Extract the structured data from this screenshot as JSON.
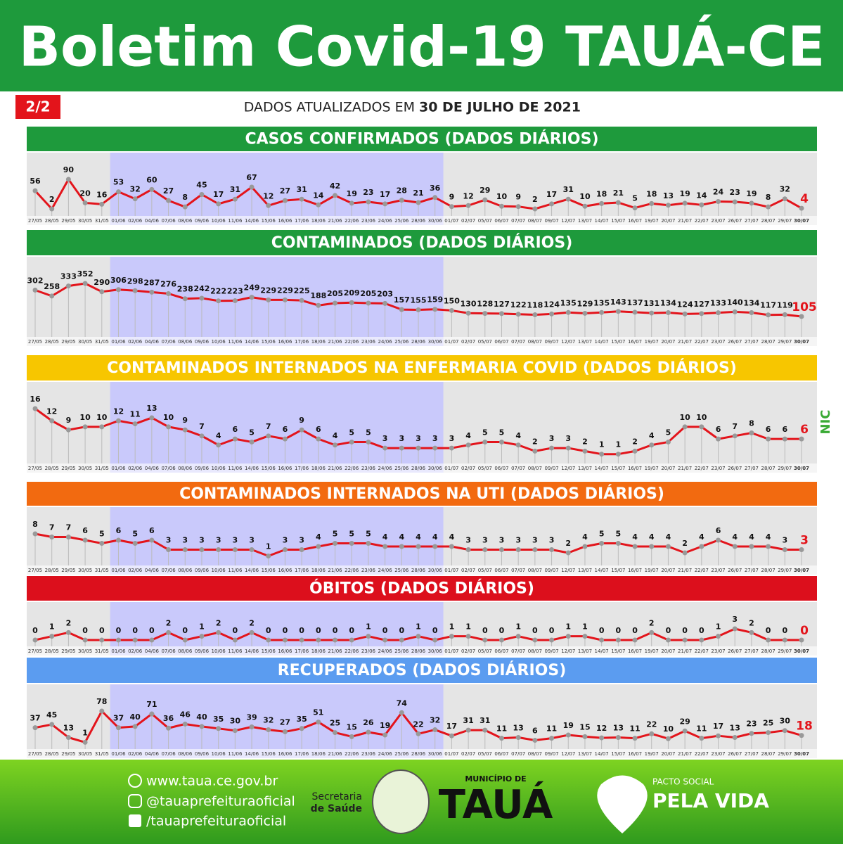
{
  "header": {
    "title": "Boletim Covid-19 TAUÁ-CE",
    "page": "2/2",
    "updated_prefix": "DADOS ATUALIZADOS EM",
    "updated_date": "30 DE JULHO DE 2021"
  },
  "chart_data": [
    {
      "type": "line",
      "title": "CASOS CONFIRMADOS  (DADOS DIÁRIOS)",
      "header_color": "#1e9a3c",
      "color": "#e3141b",
      "categories": [
        "27/05",
        "28/05",
        "29/05",
        "30/05",
        "31/05",
        "01/06",
        "02/06",
        "04/06",
        "07/06",
        "08/06",
        "09/06",
        "10/06",
        "11/06",
        "14/06",
        "15/06",
        "16/06",
        "17/06",
        "18/06",
        "21/06",
        "22/06",
        "23/06",
        "24/06",
        "25/06",
        "28/06",
        "30/06",
        "01/07",
        "02/07",
        "05/07",
        "06/07",
        "07/07",
        "08/07",
        "09/07",
        "12/07",
        "13/07",
        "14/07",
        "15/07",
        "16/07",
        "19/07",
        "20/07",
        "21/07",
        "22/07",
        "23/07",
        "26/07",
        "27/07",
        "28/07",
        "29/07",
        "30/07"
      ],
      "values": [
        56,
        2,
        90,
        20,
        16,
        53,
        32,
        60,
        27,
        8,
        45,
        17,
        31,
        67,
        12,
        27,
        31,
        14,
        42,
        19,
        23,
        17,
        28,
        21,
        36,
        9,
        12,
        29,
        10,
        9,
        2,
        17,
        31,
        10,
        18,
        21,
        5,
        18,
        13,
        19,
        14,
        24,
        23,
        19,
        8,
        32,
        4
      ]
    },
    {
      "type": "line",
      "title": "CONTAMINADOS  (DADOS DIÁRIOS)",
      "header_color": "#1e9a3c",
      "color": "#e3141b",
      "categories": [
        "27/05",
        "28/05",
        "29/05",
        "30/05",
        "31/05",
        "01/06",
        "02/06",
        "04/06",
        "07/06",
        "08/06",
        "09/06",
        "10/06",
        "11/06",
        "14/06",
        "15/06",
        "16/06",
        "17/06",
        "18/06",
        "21/06",
        "22/06",
        "23/06",
        "24/06",
        "25/06",
        "28/06",
        "30/06",
        "01/07",
        "02/07",
        "05/07",
        "06/07",
        "07/07",
        "08/07",
        "09/07",
        "12/07",
        "13/07",
        "14/07",
        "15/07",
        "16/07",
        "19/07",
        "20/07",
        "21/07",
        "22/07",
        "23/07",
        "26/07",
        "27/07",
        "28/07",
        "29/07",
        "30/07"
      ],
      "values": [
        302,
        258,
        333,
        352,
        290,
        306,
        298,
        287,
        276,
        238,
        242,
        222,
        223,
        249,
        229,
        229,
        225,
        188,
        205,
        209,
        205,
        203,
        157,
        155,
        159,
        150,
        130,
        128,
        127,
        122,
        118,
        124,
        135,
        129,
        135,
        143,
        137,
        131,
        134,
        124,
        127,
        133,
        140,
        134,
        117,
        119,
        105
      ]
    },
    {
      "type": "line",
      "title": "CONTAMINADOS INTERNADOS NA ENFERMARIA COVID  (DADOS DIÁRIOS)",
      "header_color": "#f7c600",
      "color": "#e3141b",
      "categories": [
        "27/05",
        "28/05",
        "29/05",
        "30/05",
        "31/05",
        "01/06",
        "02/06",
        "04/06",
        "07/06",
        "08/06",
        "09/06",
        "10/06",
        "11/06",
        "14/06",
        "15/06",
        "16/06",
        "17/06",
        "18/06",
        "21/06",
        "22/06",
        "23/06",
        "24/06",
        "25/06",
        "28/06",
        "30/06",
        "01/07",
        "02/07",
        "05/07",
        "06/07",
        "07/07",
        "08/07",
        "09/07",
        "12/07",
        "13/07",
        "14/07",
        "15/07",
        "16/07",
        "19/07",
        "20/07",
        "21/07",
        "22/07",
        "23/07",
        "26/07",
        "27/07",
        "28/07",
        "29/07",
        "30/07"
      ],
      "values": [
        16,
        12,
        9,
        10,
        10,
        12,
        11,
        13,
        10,
        9,
        7,
        4,
        6,
        5,
        7,
        6,
        9,
        6,
        4,
        5,
        5,
        3,
        3,
        3,
        3,
        3,
        4,
        5,
        5,
        4,
        2,
        3,
        3,
        2,
        1,
        1,
        2,
        4,
        5,
        10,
        10,
        6,
        7,
        8,
        6,
        6,
        6
      ]
    },
    {
      "type": "line",
      "title": "CONTAMINADOS INTERNADOS NA UTI  (DADOS DIÁRIOS)",
      "header_color": "#f26a10",
      "color": "#e3141b",
      "categories": [
        "27/05",
        "28/05",
        "29/05",
        "30/05",
        "31/05",
        "01/06",
        "02/06",
        "04/06",
        "07/06",
        "08/06",
        "09/06",
        "10/06",
        "11/06",
        "14/06",
        "15/06",
        "16/06",
        "17/06",
        "18/06",
        "21/06",
        "22/06",
        "23/06",
        "24/06",
        "25/06",
        "28/06",
        "30/06",
        "01/07",
        "02/07",
        "05/07",
        "06/07",
        "07/07",
        "08/07",
        "09/07",
        "12/07",
        "13/07",
        "14/07",
        "15/07",
        "16/07",
        "19/07",
        "20/07",
        "21/07",
        "22/07",
        "23/07",
        "26/07",
        "27/07",
        "28/07",
        "29/07",
        "30/07"
      ],
      "values": [
        8,
        7,
        7,
        6,
        5,
        6,
        5,
        6,
        3,
        3,
        3,
        3,
        3,
        3,
        1,
        3,
        3,
        4,
        5,
        5,
        5,
        4,
        4,
        4,
        4,
        4,
        3,
        3,
        3,
        3,
        3,
        3,
        2,
        4,
        5,
        5,
        4,
        4,
        4,
        2,
        4,
        6,
        4,
        4,
        4,
        3,
        3
      ]
    },
    {
      "type": "line",
      "title": "ÓBITOS  (DADOS DIÁRIOS)",
      "header_color": "#dc0f1c",
      "color": "#e3141b",
      "categories": [
        "27/05",
        "28/05",
        "29/05",
        "30/05",
        "31/05",
        "01/06",
        "02/06",
        "04/06",
        "07/06",
        "08/06",
        "09/06",
        "10/06",
        "11/06",
        "14/06",
        "15/06",
        "16/06",
        "17/06",
        "18/06",
        "21/06",
        "22/06",
        "23/06",
        "24/06",
        "25/06",
        "28/06",
        "30/06",
        "01/07",
        "02/07",
        "05/07",
        "06/07",
        "07/07",
        "08/07",
        "09/07",
        "12/07",
        "13/07",
        "14/07",
        "15/07",
        "16/07",
        "19/07",
        "20/07",
        "21/07",
        "22/07",
        "23/07",
        "26/07",
        "27/07",
        "28/07",
        "29/07",
        "30/07"
      ],
      "values": [
        0,
        1,
        2,
        0,
        0,
        0,
        0,
        0,
        2,
        0,
        1,
        2,
        0,
        2,
        0,
        0,
        0,
        0,
        0,
        0,
        1,
        0,
        0,
        1,
        0,
        1,
        1,
        0,
        0,
        1,
        0,
        0,
        1,
        1,
        0,
        0,
        0,
        2,
        0,
        0,
        0,
        1,
        3,
        2,
        0,
        0,
        0
      ]
    },
    {
      "type": "line",
      "title": "RECUPERADOS (DADOS DIÁRIOS)",
      "header_color": "#5b9cf0",
      "color": "#e3141b",
      "categories": [
        "27/05",
        "28/05",
        "29/05",
        "30/05",
        "31/05",
        "01/06",
        "02/06",
        "04/06",
        "07/06",
        "08/06",
        "09/06",
        "10/06",
        "11/06",
        "14/06",
        "15/06",
        "16/06",
        "17/06",
        "18/06",
        "21/06",
        "22/06",
        "23/06",
        "24/06",
        "25/06",
        "28/06",
        "30/06",
        "01/07",
        "02/07",
        "05/07",
        "06/07",
        "07/07",
        "08/07",
        "09/07",
        "12/07",
        "13/07",
        "14/07",
        "15/07",
        "16/07",
        "19/07",
        "20/07",
        "21/07",
        "22/07",
        "23/07",
        "26/07",
        "27/07",
        "28/07",
        "29/07",
        "30/07"
      ],
      "values": [
        37,
        45,
        13,
        1,
        78,
        37,
        40,
        71,
        36,
        46,
        40,
        35,
        30,
        39,
        32,
        27,
        35,
        51,
        25,
        15,
        26,
        19,
        74,
        22,
        32,
        17,
        31,
        31,
        11,
        13,
        6,
        11,
        19,
        15,
        12,
        13,
        11,
        22,
        10,
        29,
        11,
        17,
        13,
        23,
        25,
        30,
        18
      ]
    }
  ],
  "side_logo": "NIC",
  "footer": {
    "site": "www.taua.ce.gov.br",
    "instagram": "@tauaprefeituraoficial",
    "facebook": "/tauaprefeituraoficial",
    "secretaria": "Secretaria",
    "saude": "de Saúde",
    "municipio": "MUNICÍPIO DE",
    "city": "TAUÁ",
    "pacto": "PACTO SOCIAL",
    "pela_vida": "PELA VIDA"
  }
}
